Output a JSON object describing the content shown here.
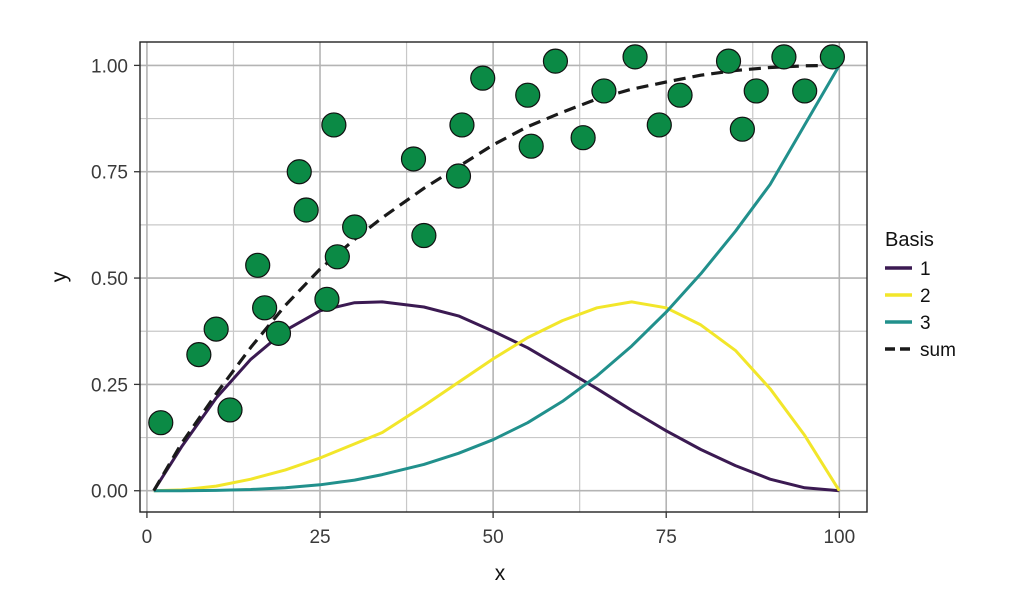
{
  "chart_data": {
    "type": "line",
    "xlabel": "x",
    "ylabel": "y",
    "xlim": [
      -1,
      104
    ],
    "ylim": [
      -0.05,
      1.055
    ],
    "x_ticks": [
      0,
      25,
      50,
      75,
      100
    ],
    "x_tick_labels": [
      "0",
      "25",
      "50",
      "75",
      "100"
    ],
    "y_ticks": [
      0,
      0.25,
      0.5,
      0.75,
      1
    ],
    "y_tick_labels": [
      "0.00",
      "0.25",
      "0.50",
      "0.75",
      "1.00"
    ],
    "grid": true,
    "legend": {
      "title": "Basis",
      "position": "right",
      "entries": [
        {
          "label": "1",
          "color": "#3b1a52",
          "dashed": false
        },
        {
          "label": "2",
          "color": "#f2e62a",
          "dashed": false
        },
        {
          "label": "3",
          "color": "#21908c",
          "dashed": false
        },
        {
          "label": "sum",
          "color": "#1a1a1a",
          "dashed": true
        }
      ]
    },
    "basis_x": [
      1,
      5,
      10,
      15,
      20,
      25,
      30,
      34,
      40,
      45,
      50,
      55,
      60,
      65,
      70,
      75,
      80,
      85,
      90,
      95,
      100
    ],
    "series": [
      {
        "name": "1",
        "color": "#3b1a52",
        "dashed": false,
        "values": [
          0,
          0.103,
          0.218,
          0.309,
          0.377,
          0.423,
          0.442,
          0.444,
          0.432,
          0.411,
          0.375,
          0.336,
          0.288,
          0.24,
          0.189,
          0.141,
          0.097,
          0.059,
          0.027,
          0.007,
          0
        ]
      },
      {
        "name": "2",
        "color": "#f2e62a",
        "dashed": false,
        "values": [
          0,
          0.002,
          0.011,
          0.027,
          0.049,
          0.077,
          0.11,
          0.137,
          0.2,
          0.255,
          0.31,
          0.36,
          0.4,
          0.43,
          0.444,
          0.43,
          0.39,
          0.33,
          0.24,
          0.13,
          0
        ]
      },
      {
        "name": "3",
        "color": "#21908c",
        "dashed": false,
        "values": [
          0,
          0.0001,
          0.0009,
          0.003,
          0.007,
          0.014,
          0.025,
          0.038,
          0.062,
          0.088,
          0.12,
          0.16,
          0.21,
          0.27,
          0.34,
          0.42,
          0.51,
          0.61,
          0.72,
          0.86,
          1.0
        ]
      },
      {
        "name": "sum",
        "color": "#1a1a1a",
        "dashed": true,
        "values": [
          0,
          0.111,
          0.228,
          0.337,
          0.436,
          0.521,
          0.591,
          0.642,
          0.711,
          0.762,
          0.813,
          0.856,
          0.89,
          0.921,
          0.944,
          0.961,
          0.977,
          0.988,
          0.995,
          0.999,
          1.0
        ]
      }
    ],
    "points": {
      "color": "#0b8a45",
      "x": [
        2,
        7.5,
        10,
        12,
        16,
        17,
        19,
        22,
        23,
        26,
        27,
        27.5,
        30,
        38.5,
        40,
        45,
        45.5,
        48.5,
        55,
        55.5,
        59,
        63,
        66,
        70.5,
        74,
        77,
        84,
        86,
        88,
        92,
        95,
        99
      ],
      "y": [
        0.16,
        0.32,
        0.38,
        0.19,
        0.53,
        0.43,
        0.37,
        0.75,
        0.66,
        0.45,
        0.86,
        0.55,
        0.62,
        0.78,
        0.6,
        0.74,
        0.86,
        0.97,
        0.93,
        0.81,
        1.01,
        0.83,
        0.94,
        1.02,
        0.86,
        0.93,
        1.01,
        0.85,
        0.94,
        1.02,
        0.94,
        1.02
      ]
    }
  }
}
